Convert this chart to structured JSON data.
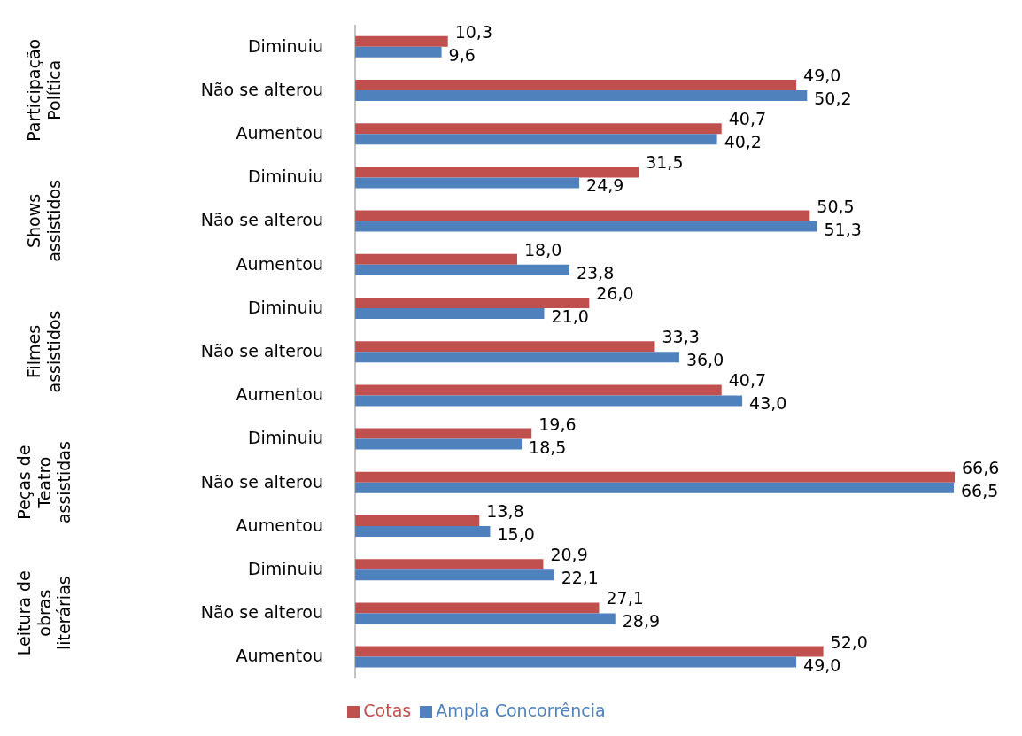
{
  "chart_data": {
    "type": "bar",
    "orientation": "horizontal",
    "categories": [
      "Diminuiu",
      "Não se alterou",
      "Aumentou",
      "Diminuiu",
      "Não se alterou",
      "Aumentou",
      "Diminuiu",
      "Não se alterou",
      "Aumentou",
      "Diminuiu",
      "Não se alterou",
      "Aumentou",
      "Diminuiu",
      "Não se alterou",
      "Aumentou"
    ],
    "series": [
      {
        "name": "Cotas",
        "color": "#c0504d",
        "values": [
          10.3,
          49.0,
          40.7,
          31.5,
          50.5,
          18.0,
          26.0,
          33.3,
          40.7,
          19.6,
          66.6,
          13.8,
          20.9,
          27.1,
          52.0
        ],
        "value_labels": [
          "10,3",
          "49,0",
          "40,7",
          "31,5",
          "50,5",
          "18,0",
          "26,0",
          "33,3",
          "40,7",
          "19,6",
          "66,6",
          "13,8",
          "20,9",
          "27,1",
          "52,0"
        ]
      },
      {
        "name": "Ampla Concorrência",
        "color": "#4f81bd",
        "values": [
          9.6,
          50.2,
          40.2,
          24.9,
          51.3,
          23.8,
          21.0,
          36.0,
          43.0,
          18.5,
          66.5,
          15.0,
          22.1,
          28.9,
          49.0
        ],
        "value_labels": [
          "9,6",
          "50,2",
          "40,2",
          "24,9",
          "51,3",
          "23,8",
          "21,0",
          "36,0",
          "43,0",
          "18,5",
          "66,5",
          "15,0",
          "22,1",
          "28,9",
          "49,0"
        ]
      }
    ],
    "annotations": [
      "Participação Política",
      "Shows assistidos",
      "Filmes assistidos",
      "Peças de Teatro assistidas",
      "Leitura de obras literárias"
    ],
    "legend": "bottom",
    "tick_labels": "y"
  }
}
